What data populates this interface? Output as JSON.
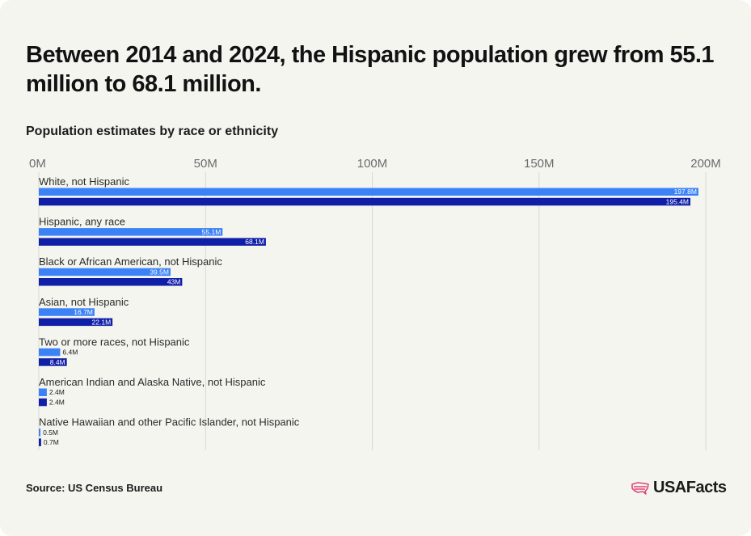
{
  "header": {
    "title": "Between 2014 and 2024, the Hispanic population grew from 55.1 million to 68.1 million.",
    "subtitle": "Population estimates by race or ethnicity"
  },
  "footer": {
    "source": "Source: US Census Bureau",
    "brand": "USAFacts",
    "brand_icon": "us-map-logo-icon"
  },
  "colors": {
    "series_2014": "#3b82f6",
    "series_2024": "#101fa8",
    "grid": "#d9d9d4",
    "brand_accent": "#e0457b"
  },
  "chart_data": {
    "type": "bar",
    "orientation": "horizontal",
    "title": "Population estimates by race or ethnicity",
    "xlim": [
      0,
      200
    ],
    "x_ticks": [
      0,
      50,
      100,
      150,
      200
    ],
    "x_tick_labels": [
      "0M",
      "50M",
      "100M",
      "150M",
      "200M"
    ],
    "grid": true,
    "categories": [
      "White, not Hispanic",
      "Hispanic, any race",
      "Black or African American, not Hispanic",
      "Asian, not Hispanic",
      "Two or more races, not Hispanic",
      "American Indian and Alaska Native, not Hispanic",
      "Native Hawaiian and other Pacific Islander, not Hispanic"
    ],
    "series": [
      {
        "values": [
          197.8,
          55.1,
          39.5,
          16.7,
          6.4,
          2.4,
          0.5
        ],
        "labels": [
          "197.8M",
          "55.1M",
          "39.5M",
          "16.7M",
          "6.4M",
          "2.4M",
          "0.5M"
        ]
      },
      {
        "values": [
          195.4,
          68.1,
          43.0,
          22.1,
          8.4,
          2.4,
          0.7
        ],
        "labels": [
          "195.4M",
          "68.1M",
          "43M",
          "22.1M",
          "8.4M",
          "2.4M",
          "0.7M"
        ]
      }
    ]
  }
}
